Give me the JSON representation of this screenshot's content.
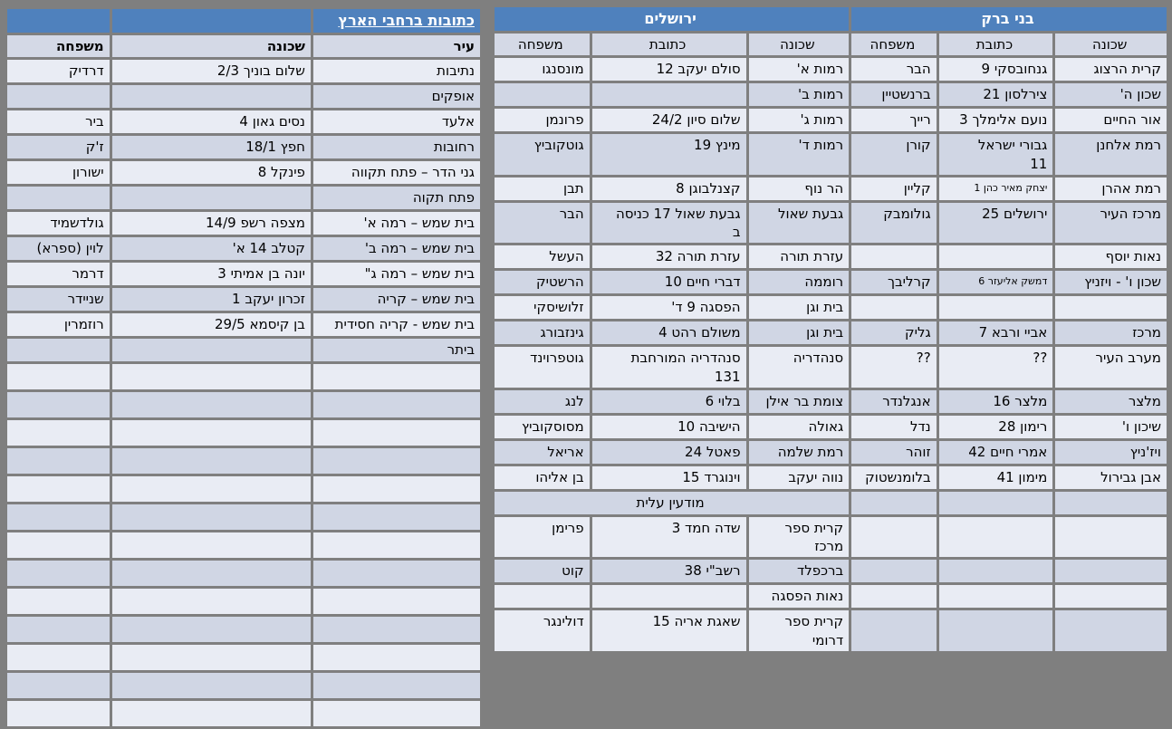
{
  "page": {
    "background_color": "#7F7F7F",
    "gridline_color": "#FFFFFF"
  },
  "colors": {
    "header_blue": "#4F81BD",
    "band_light": "#E9ECF4",
    "band_dark": "#D0D6E4",
    "subheader_bg": "#D4D9E6",
    "header_text": "#FFFFFF",
    "body_text": "#000000"
  },
  "main_table": {
    "sections": [
      {
        "title": "בני ברק",
        "columns": [
          "שכונה",
          "כתובת",
          "משפחה"
        ]
      },
      {
        "title": "ירושלים",
        "columns": [
          "שכונה",
          "כתובת",
          "משפחה"
        ]
      }
    ],
    "rows": [
      {
        "bnei_brak": [
          "קרית הרצוג",
          "גנחובסקי 9",
          "הבר"
        ],
        "jerusalem": [
          "רמות א'",
          "סולם יעקב 12",
          "מונסנגו"
        ]
      },
      {
        "bnei_brak": [
          "שכון ה'",
          "צירלסון 21",
          "ברנשטיין"
        ],
        "jerusalem": [
          "רמות ב'",
          "",
          ""
        ]
      },
      {
        "bnei_brak": [
          "אור החיים",
          "נועם אלימלך 3",
          "רייך"
        ],
        "jerusalem": [
          "רמות ג'",
          "שלום סיון 24/2",
          "פרונמן"
        ]
      },
      {
        "bnei_brak": [
          "רמת אלחנן",
          "גבורי ישראל\n11",
          "קורן"
        ],
        "jerusalem": [
          "רמות ד'",
          "מינץ 19",
          "גוטקוביץ"
        ]
      },
      {
        "bnei_brak": [
          "רמת אהרן",
          {
            "text": "יצחק מאיר כהן 1",
            "small": true
          },
          "קליין"
        ],
        "jerusalem": [
          "הר נוף",
          "קצנלבוגן 8",
          "תבן"
        ]
      },
      {
        "bnei_brak": [
          "מרכז העיר",
          "ירושלים 25",
          "גולומבק"
        ],
        "jerusalem": [
          "גבעת שאול",
          "גבעת שאול 17 כניסה\nב",
          "הבר"
        ]
      },
      {
        "bnei_brak": [
          "נאות יוסף",
          "",
          ""
        ],
        "jerusalem": [
          "עזרת תורה",
          "עזרת תורה 32",
          "העשל"
        ]
      },
      {
        "bnei_brak": [
          "שכון ו' - ויזניץ",
          {
            "text": "דמשק אליעזר 6",
            "small": true
          },
          "קרליבך"
        ],
        "jerusalem": [
          "רוממה",
          "דברי חיים 10",
          "הרשטיק"
        ]
      },
      {
        "bnei_brak": [
          "",
          "",
          ""
        ],
        "jerusalem": [
          "בית וגן",
          "הפסגה 9 ד'",
          "זלושיסקי"
        ]
      },
      {
        "bnei_brak": [
          "מרכז",
          "אביי ורבא 7",
          "גליק"
        ],
        "jerusalem": [
          "בית וגן",
          "משולם רהט 4",
          "גינזבורג"
        ]
      },
      {
        "bnei_brak": [
          "מערב העיר",
          "??",
          "??"
        ],
        "jerusalem": [
          "סנהדריה",
          "סנהדריה המורחבת\n131",
          "גוטפרוינד"
        ]
      },
      {
        "bnei_brak": [
          "מלצר",
          "מלצר 16",
          "אנגלנדר"
        ],
        "jerusalem": [
          "צומת בר אילן",
          "בלוי 6",
          "לנג"
        ]
      },
      {
        "bnei_brak": [
          "שיכון ו'",
          "רימון 28",
          "נדל"
        ],
        "jerusalem": [
          "גאולה",
          "הישיבה 10",
          "מסוסקוביץ"
        ]
      },
      {
        "bnei_brak": [
          "ויז'ניץ",
          "אמרי חיים 42",
          "זוהר"
        ],
        "jerusalem": [
          "רמת שלמה",
          "פאטל 24",
          "אריאל"
        ]
      },
      {
        "bnei_brak": [
          "אבן גבירול",
          "מימון 41",
          "בלומנשטוק"
        ],
        "jerusalem": [
          "נווה יעקב",
          "וינוגרד 15",
          "בן אליהו"
        ]
      },
      {
        "bnei_brak": [
          "",
          "",
          ""
        ],
        "jerusalem_section": "מודעין עלית"
      },
      {
        "bnei_brak": [
          "",
          "",
          ""
        ],
        "jerusalem": [
          "קרית ספר\nמרכז",
          "שדה חמד 3",
          "פרימן"
        ]
      },
      {
        "bnei_brak": [
          "",
          "",
          ""
        ],
        "jerusalem": [
          "ברכפלד",
          "רשב\"י 38",
          "קוט"
        ]
      },
      {
        "bnei_brak": [
          "",
          "",
          ""
        ],
        "jerusalem": [
          "נאות הפסגה",
          "",
          ""
        ]
      },
      {
        "bnei_brak": [
          "",
          "",
          ""
        ],
        "jerusalem": [
          "קרית ספר\nדרומי",
          "שאגת אריה 15",
          "דולינגר"
        ]
      }
    ]
  },
  "left_table": {
    "title": "כתובות ברחבי הארץ",
    "columns": [
      "עיר",
      "שכונה",
      "משפחה"
    ],
    "rows": [
      [
        "נתיבות",
        "שלום בוניך 2/3",
        "דרדיק"
      ],
      [
        "אופקים",
        "",
        ""
      ],
      [
        "אלעד",
        "נסים גאון 4",
        "ביר"
      ],
      [
        "רחובות",
        "חפץ 18/1",
        "ז'ק"
      ],
      [
        "גני הדר – פתח תקווה",
        "פינקל 8",
        "ישורון"
      ],
      [
        "פתח תקוה",
        "",
        ""
      ],
      [
        "בית שמש – רמה א'",
        "מצפה רשפ 14/9",
        "גולדשמיד"
      ],
      [
        "בית שמש – רמה ב'",
        "קטלב 14 א'",
        "לוין (ספרא)"
      ],
      [
        "בית שמש – רמה ג\"",
        "יונה בן אמיתי 3",
        "דרמר"
      ],
      [
        "בית שמש – קריה",
        "זכרון יעקב 1",
        "שניידר"
      ],
      [
        "בית שמש - קריה חסידית",
        "בן קיסמא 29/5",
        "רוזמרין"
      ],
      [
        "ביתר",
        "",
        ""
      ]
    ],
    "empty_row_count": 13
  }
}
